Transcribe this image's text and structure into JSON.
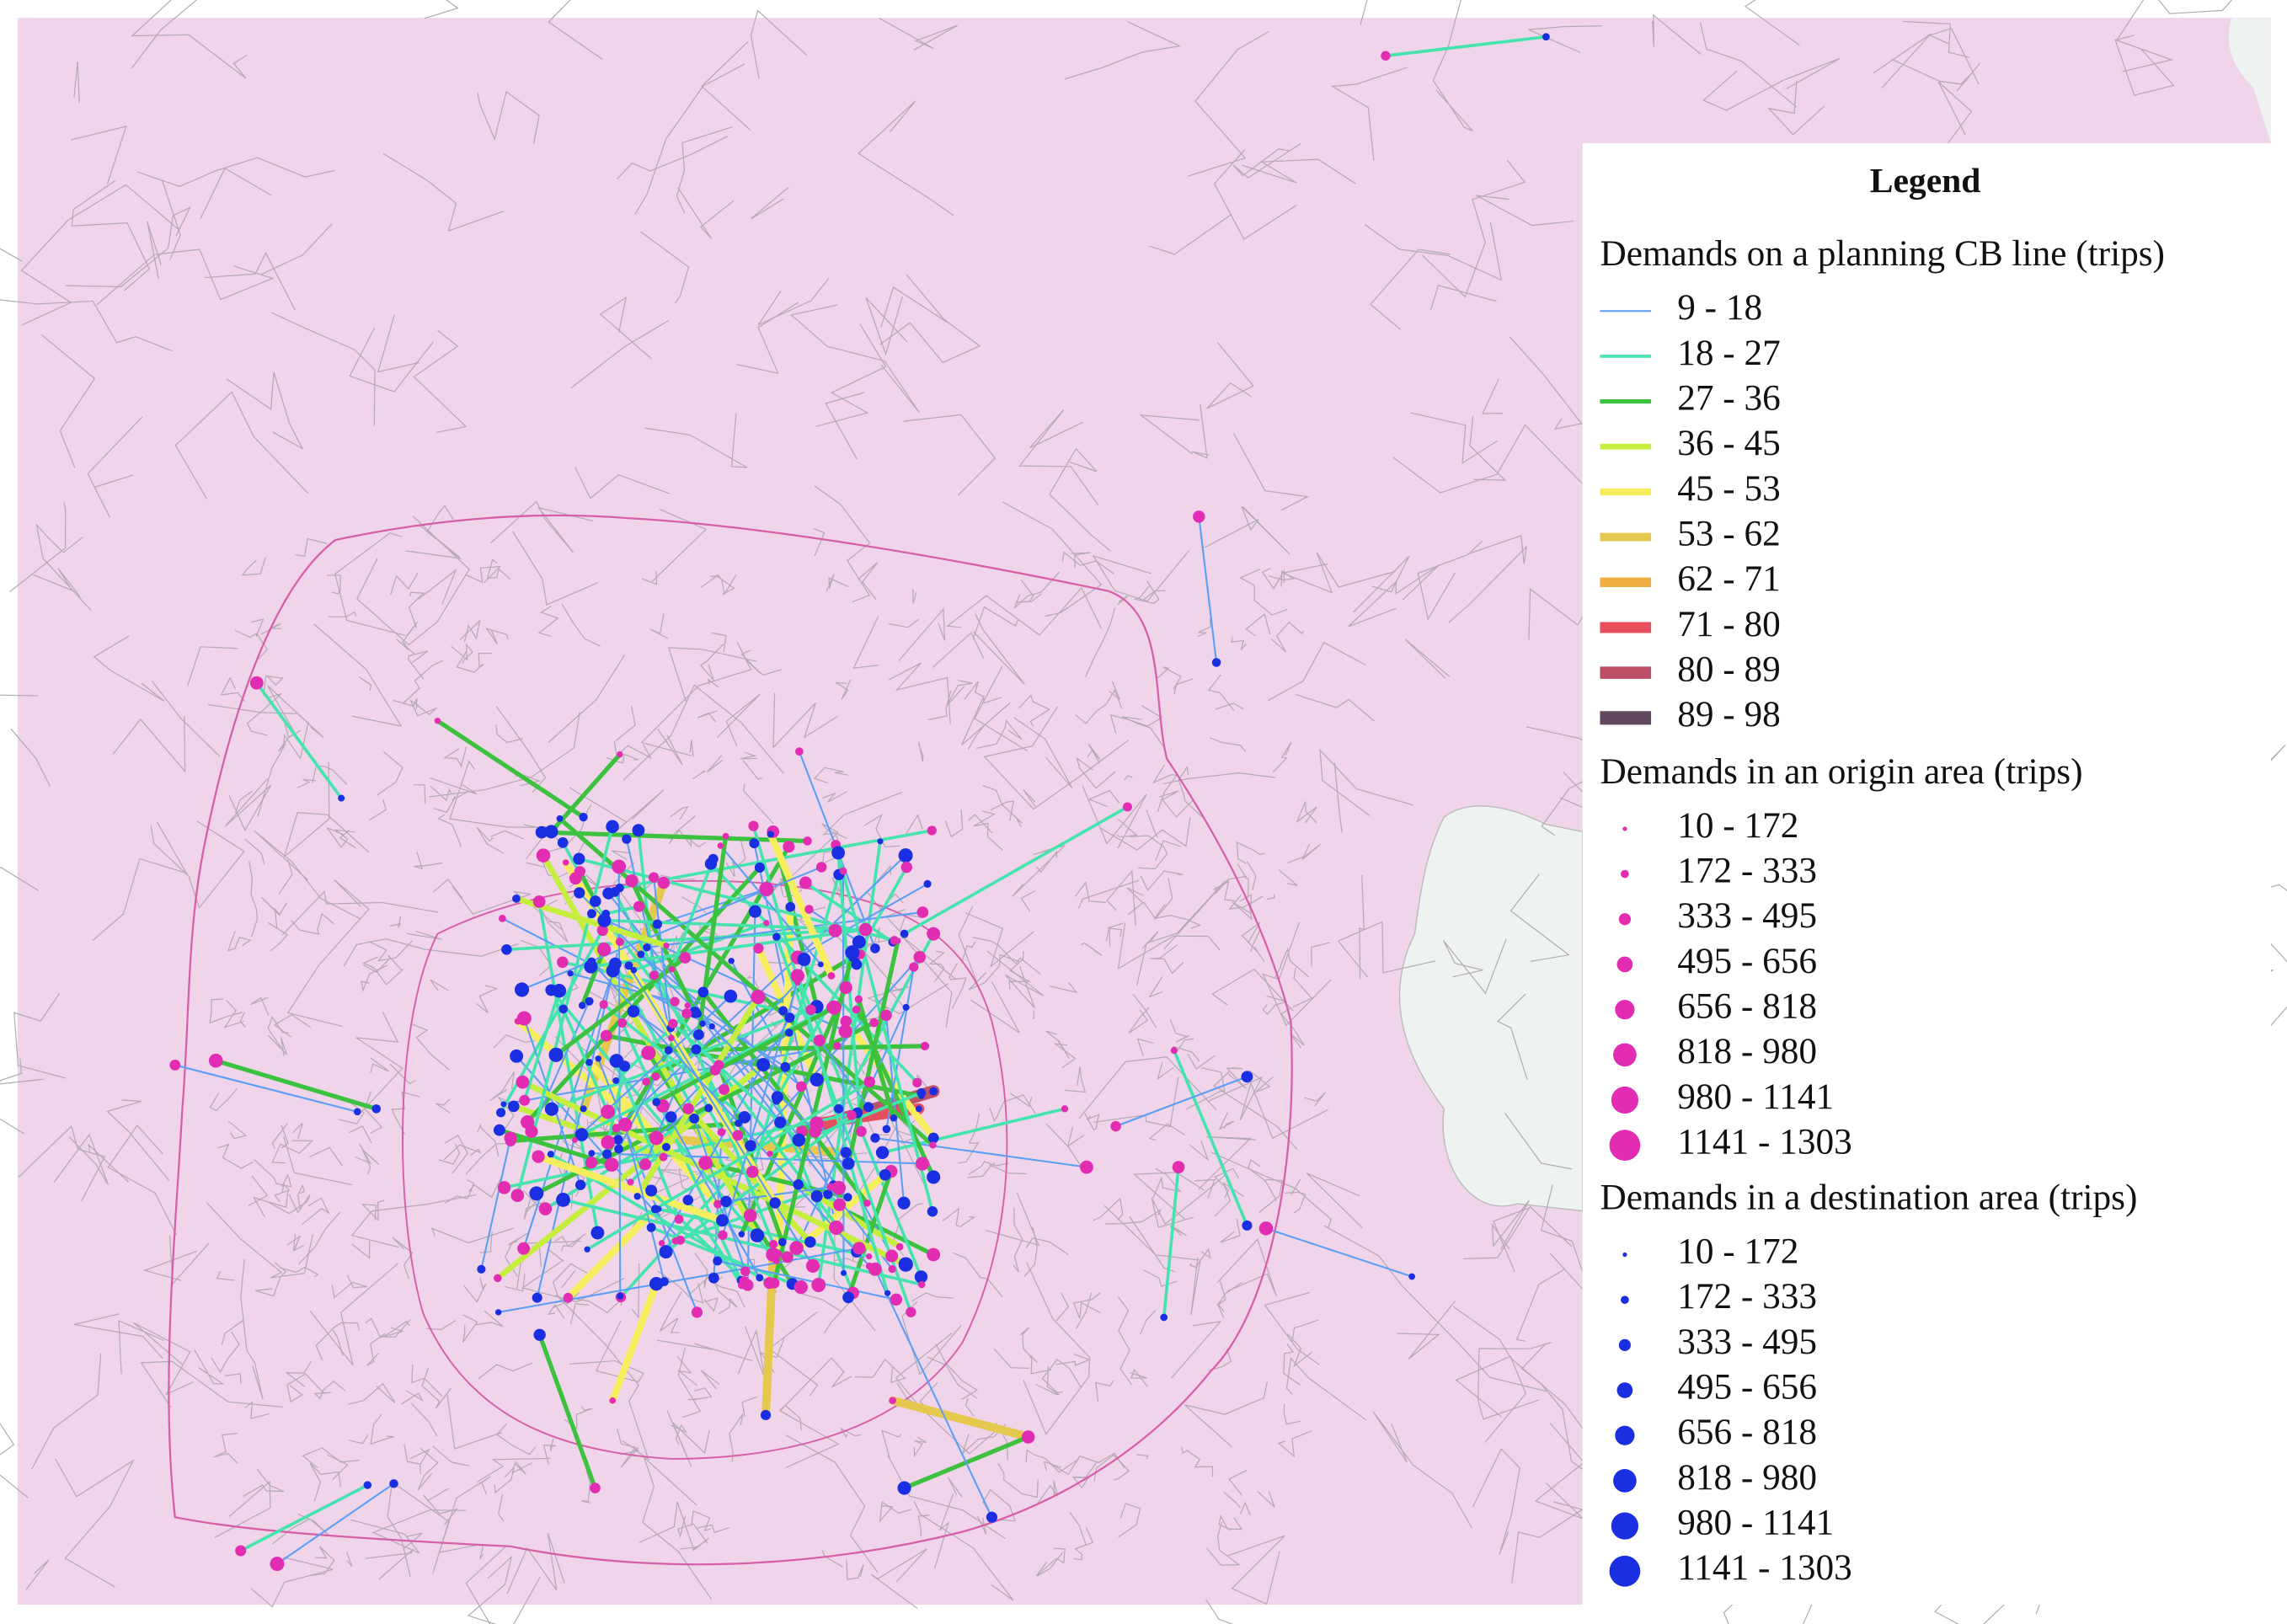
{
  "legend": {
    "title": "Legend",
    "sections": [
      {
        "title": "Demands on a planning CB line (trips)",
        "kind": "line",
        "items": [
          {
            "label": "9 - 18",
            "color": "#5b9ef5"
          },
          {
            "label": "18 - 27",
            "color": "#45e4ae"
          },
          {
            "label": "27 - 36",
            "color": "#3cc23e"
          },
          {
            "label": "36 - 45",
            "color": "#c6ee3e"
          },
          {
            "label": "45 - 53",
            "color": "#f6ee5e"
          },
          {
            "label": "53 - 62",
            "color": "#e6c84e"
          },
          {
            "label": "62 - 71",
            "color": "#eeae42"
          },
          {
            "label": "71 - 80",
            "color": "#e6505e"
          },
          {
            "label": "80 - 89",
            "color": "#bd5068"
          },
          {
            "label": "89 - 98",
            "color": "#62485e"
          }
        ]
      },
      {
        "title": "Demands in an origin area (trips)",
        "kind": "dot",
        "items": [
          {
            "label": "10 - 172",
            "color": "#e22db2"
          },
          {
            "label": "172 - 333",
            "color": "#e22db2"
          },
          {
            "label": "333 - 495",
            "color": "#e22db2"
          },
          {
            "label": "495 - 656",
            "color": "#e22db2"
          },
          {
            "label": "656 - 818",
            "color": "#e22db2"
          },
          {
            "label": "818 - 980",
            "color": "#e22db2"
          },
          {
            "label": "980 - 1141",
            "color": "#e22db2"
          },
          {
            "label": "1141 - 1303",
            "color": "#e22db2"
          }
        ]
      },
      {
        "title": "Demands in a destination area (trips)",
        "kind": "dot",
        "items": [
          {
            "label": "10 - 172",
            "color": "#1a2ee2"
          },
          {
            "label": "172 - 333",
            "color": "#1a2ee2"
          },
          {
            "label": "333 - 495",
            "color": "#1a2ee2"
          },
          {
            "label": "495 - 656",
            "color": "#1a2ee2"
          },
          {
            "label": "656 - 818",
            "color": "#1a2ee2"
          },
          {
            "label": "818 - 980",
            "color": "#1a2ee2"
          },
          {
            "label": "980 - 1141",
            "color": "#1a2ee2"
          },
          {
            "label": "1141 - 1303",
            "color": "#1a2ee2"
          }
        ]
      }
    ]
  }
}
